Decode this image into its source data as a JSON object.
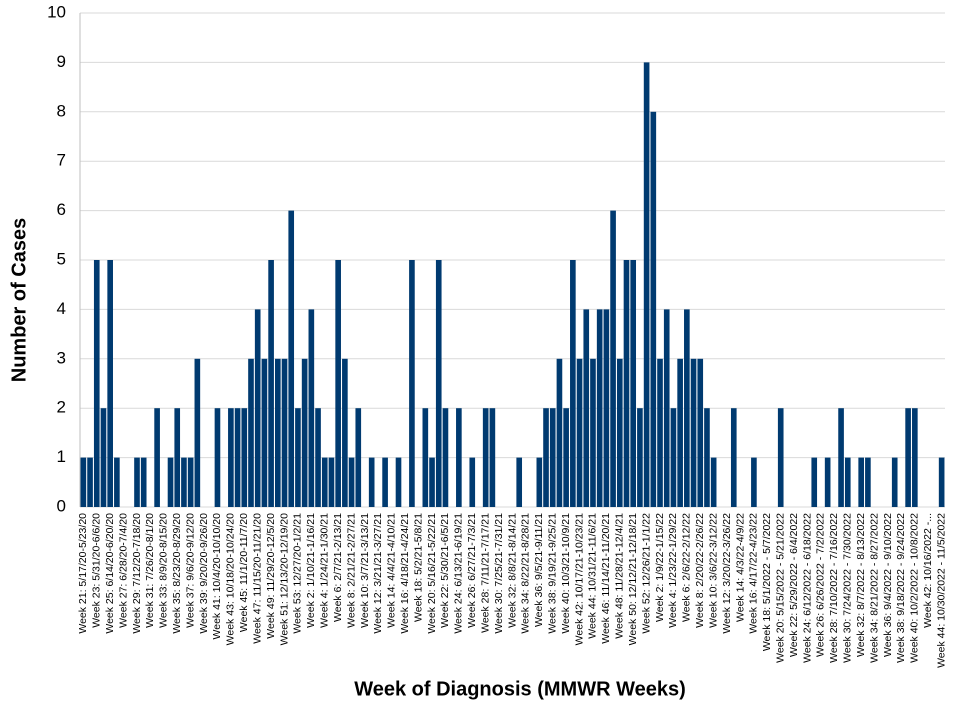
{
  "chart_data": {
    "type": "bar",
    "x_label": "Week of Diagnosis (MMWR Weeks)",
    "y_label": "Number of Cases",
    "color": "#003a70",
    "grid": true,
    "ylim": [
      0,
      10
    ],
    "yticks": [
      0,
      1,
      2,
      3,
      4,
      5,
      6,
      7,
      8,
      9,
      10
    ],
    "categories": [
      "Week 21: 5/17/20-5/23/20",
      null,
      "Week 23: 5/31/20-6/6/20",
      null,
      "Week 25: 6/14/20-6/20/20",
      null,
      "Week 27: 6/28/20-7/4/20",
      null,
      "Week 29: 7/12/20-7/18/20",
      null,
      "Week 31: 7/26/20-8/1/20",
      null,
      "Week 33: 8/9/20-8/15/20",
      null,
      "Week 35: 8/23/20-8/29/20",
      null,
      "Week 37: 9/6/20-9/12/20",
      null,
      "Week 39: 9/20/20-9/26/20",
      null,
      "Week 41: 10/4/20-10/10/20",
      null,
      "Week 43: 10/18/20-10/24/20",
      null,
      "Week 45: 11/1/20-11/7/20",
      null,
      "Week 47: 11/15/20-11/21/20",
      null,
      "Week 49: 11/29/20-12/5/20",
      null,
      "Week 51: 12/13/20-12/19/20",
      null,
      "Week 53: 12/27/20-1/2/21",
      null,
      "Week 2: 1/10/21-1/16/21",
      null,
      "Week 4: 1/24/21-1/30/21",
      null,
      "Week 6: 2/7/21-2/13/21",
      null,
      "Week 8: 2/21/21-2/27/21",
      null,
      "Week 10: 3/7/21-3/13/21",
      null,
      "Week 12: 3/21/21-3/27/21",
      null,
      "Week 14: 4/4/21-4/10/21",
      null,
      "Week 16: 4/18/21-4/24/21",
      null,
      "Week 18: 5/2/21-5/8/21",
      null,
      "Week 20: 5/16/21-5/22/21",
      null,
      "Week 22: 5/30/21-6/5/21",
      null,
      "Week 24: 6/13/21-6/19/21",
      null,
      "Week 26: 6/27/21-7/3/21",
      null,
      "Week 28: 7/11/21-7/17/21",
      null,
      "Week 30: 7/25/21-7/31/21",
      null,
      "Week 32: 8/8/21-8/14/21",
      null,
      "Week 34: 8/22/21-8/28/21",
      null,
      "Week 36: 9/5/21-9/11/21",
      null,
      "Week 38: 9/19/21-9/25/21",
      null,
      "Week 40: 10/3/21-10/9/21",
      null,
      "Week 42: 10/17/21-10/23/21",
      null,
      "Week 44: 10/31/21-11/6/21",
      null,
      "Week 46: 11/14/21-11/20/21",
      null,
      "Week 48: 11/28/21-12/4/21",
      null,
      "Week 50: 12/12/21-12/18/21",
      null,
      "Week 52: 12/26/21-1/1/22",
      null,
      "Week 2: 1/9/22-1/15/22",
      null,
      "Week 4: 1/23/22-1/29/22",
      null,
      "Week 6: 2/6/22-2/12/22",
      null,
      "Week 8: 2/20/22-2/26/22",
      null,
      "Week 10: 3/6/22-3/12/22",
      null,
      "Week 12: 3/20/22-3/26/22",
      null,
      "Week 14: 4/3/22-4/9/22",
      null,
      "Week 16: 4/17/22-4/23/22",
      null,
      "Week 18: 5/1/2022 - 5/7/2022",
      null,
      "Week 20: 5/15/2022 - 5/21/2022",
      null,
      "Week 22: 5/29/2022 - 6/4/2022",
      null,
      "Week 24: 6/12/2022 - 6/18/2022",
      null,
      "Week 26: 6/26/2022 - 7/2/2022",
      null,
      "Week 28: 7/10/2022 - 7/16/2022",
      null,
      "Week 30: 7/24/2022 - 7/30/2022",
      null,
      "Week 32: 8/7/2022 - 8/13/2022",
      null,
      "Week 34: 8/21/2022 - 8/27/2022",
      null,
      "Week 36: 9/4/2022 - 9/10/2022",
      null,
      "Week 38: 9/18/2022 - 9/24/2022",
      null,
      "Week 40: 10/2/2022 - 10/8/2022",
      null,
      "Week 42: 10/16/2022 -...",
      null,
      "Week 44: 10/30/2022 - 11/5/2022"
    ],
    "values": [
      1,
      1,
      5,
      2,
      5,
      1,
      0,
      0,
      1,
      1,
      0,
      2,
      0,
      1,
      2,
      1,
      1,
      3,
      0,
      0,
      2,
      0,
      2,
      2,
      2,
      3,
      4,
      3,
      5,
      3,
      3,
      6,
      2,
      3,
      4,
      2,
      1,
      1,
      5,
      3,
      1,
      2,
      0,
      1,
      0,
      1,
      0,
      1,
      0,
      5,
      0,
      2,
      1,
      5,
      2,
      0,
      2,
      0,
      1,
      0,
      2,
      2,
      0,
      0,
      0,
      1,
      0,
      0,
      1,
      2,
      2,
      3,
      2,
      5,
      3,
      4,
      3,
      4,
      4,
      6,
      3,
      5,
      5,
      2,
      9,
      8,
      3,
      4,
      2,
      3,
      4,
      3,
      3,
      2,
      1,
      0,
      0,
      2,
      0,
      0,
      1,
      0,
      0,
      0,
      2,
      0,
      0,
      0,
      0,
      1,
      0,
      1,
      0,
      2,
      1,
      0,
      1,
      1,
      0,
      0,
      0,
      1,
      0,
      2,
      2,
      0,
      0,
      0,
      1
    ]
  }
}
